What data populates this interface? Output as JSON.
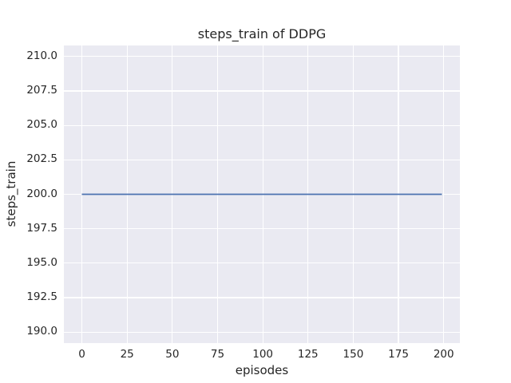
{
  "figure": {
    "background_color": "#ffffff",
    "plot_background_color": "#eaeaf2",
    "grid_color": "#ffffff",
    "text_color": "#262626"
  },
  "chart_data": {
    "type": "line",
    "title": "steps_train of DDPG",
    "xlabel": "episodes",
    "ylabel": "steps_train",
    "xlim": [
      -9.95,
      208.95
    ],
    "ylim": [
      189.2,
      210.8
    ],
    "grid": true,
    "legend_position": "none",
    "x_ticks": {
      "values": [
        0,
        25,
        50,
        75,
        100,
        125,
        150,
        175,
        200
      ],
      "labels": [
        "0",
        "25",
        "50",
        "75",
        "100",
        "125",
        "150",
        "175",
        "200"
      ]
    },
    "y_ticks": {
      "values": [
        190,
        192.5,
        195,
        197.5,
        200,
        202.5,
        205,
        207.5,
        210
      ],
      "labels": [
        "190.0",
        "192.5",
        "195.0",
        "197.5",
        "200.0",
        "202.5",
        "205.0",
        "207.5",
        "210.0"
      ]
    },
    "series": [
      {
        "name": "steps_train",
        "color": "#4c72b0",
        "line_width": 1.8,
        "x": [
          0,
          199
        ],
        "y": [
          200,
          200
        ]
      }
    ]
  }
}
